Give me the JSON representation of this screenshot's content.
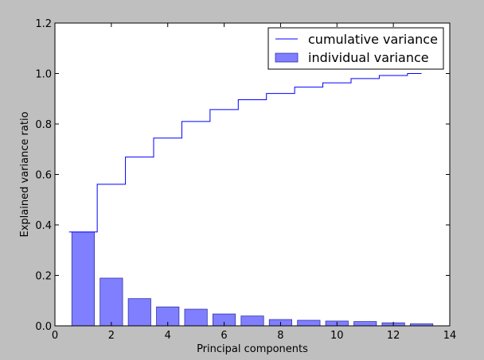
{
  "chart_data": {
    "type": "bar",
    "xlabel": "Principal components",
    "ylabel": "Explained variance ratio",
    "xlim": [
      0,
      14
    ],
    "ylim": [
      0,
      1.2
    ],
    "xticks": [
      "0",
      "2",
      "4",
      "6",
      "8",
      "10",
      "12",
      "14"
    ],
    "yticks": [
      "0.0",
      "0.2",
      "0.4",
      "0.6",
      "0.8",
      "1.0",
      "1.2"
    ],
    "grid": false,
    "legend_position": "top-right",
    "x": [
      1,
      2,
      3,
      4,
      5,
      6,
      7,
      8,
      9,
      10,
      11,
      12,
      13
    ],
    "series": [
      {
        "name": "cumulative variance",
        "kind": "step",
        "color": "#0000ff",
        "values": [
          0.372,
          0.561,
          0.669,
          0.744,
          0.81,
          0.857,
          0.896,
          0.921,
          0.946,
          0.963,
          0.98,
          0.992,
          1.0
        ]
      },
      {
        "name": "individual variance",
        "kind": "bar",
        "color": "#7f7fff",
        "values": [
          0.372,
          0.189,
          0.108,
          0.075,
          0.066,
          0.047,
          0.039,
          0.025,
          0.022,
          0.019,
          0.017,
          0.012,
          0.008
        ]
      }
    ]
  }
}
